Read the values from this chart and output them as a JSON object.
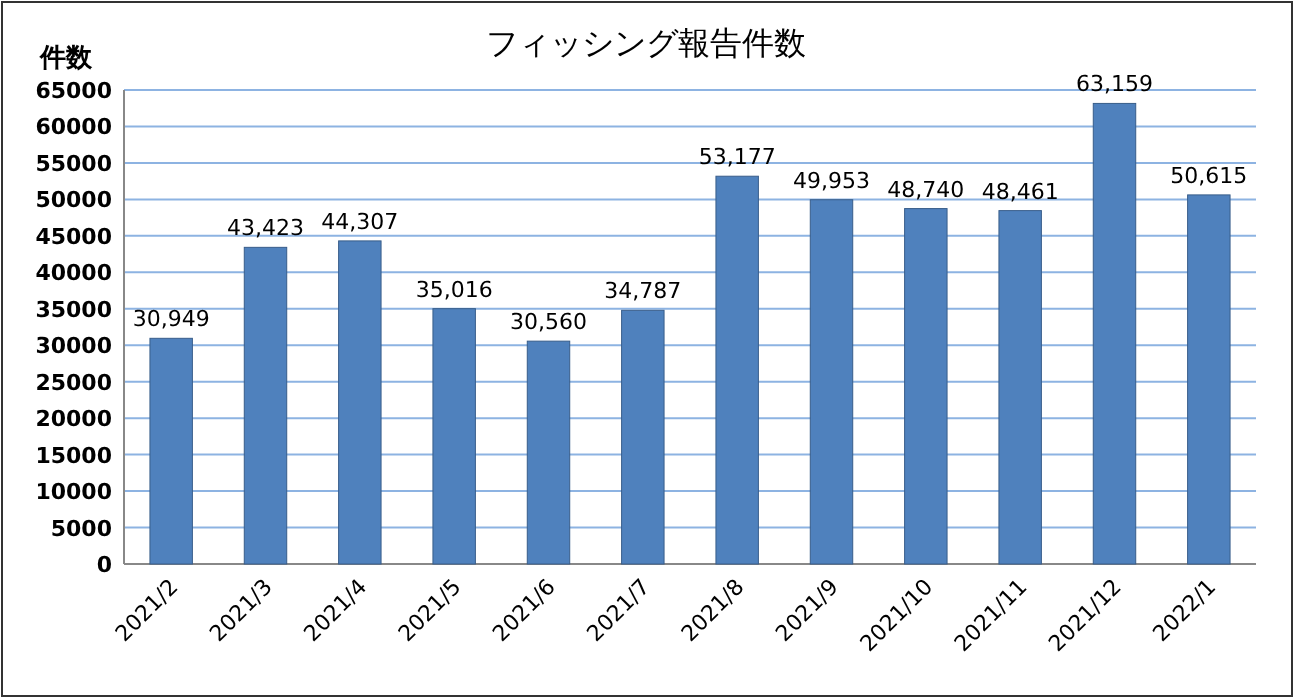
{
  "chart_data": {
    "type": "bar",
    "title": "フィッシング報告件数",
    "ylabel": "件数",
    "categories": [
      "2021/2",
      "2021/3",
      "2021/4",
      "2021/5",
      "2021/6",
      "2021/7",
      "2021/8",
      "2021/9",
      "2021/10",
      "2021/11",
      "2021/12",
      "2022/1"
    ],
    "values": [
      30949,
      43423,
      44307,
      35016,
      30560,
      34787,
      53177,
      49953,
      48740,
      48461,
      63159,
      50615
    ],
    "value_labels": [
      "30,949",
      "43,423",
      "44,307",
      "35,016",
      "30,560",
      "34,787",
      "53,177",
      "49,953",
      "48,740",
      "48,461",
      "63,159",
      "50,615"
    ],
    "color": "#4f81bd",
    "ylim": [
      0,
      65000
    ],
    "yticks": [
      0,
      5000,
      10000,
      15000,
      20000,
      25000,
      30000,
      35000,
      40000,
      45000,
      50000,
      55000,
      60000,
      65000
    ],
    "grid": "y"
  }
}
